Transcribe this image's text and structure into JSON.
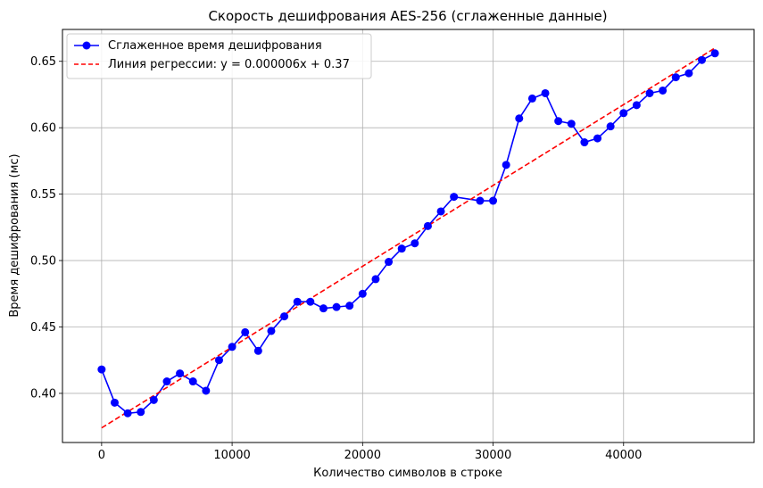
{
  "chart_data": {
    "type": "line",
    "title": "Скорость дешифрования AES-256 (сглаженные данные)",
    "xlabel": "Количество символов в строке",
    "ylabel": "Время дешифрования (мс)",
    "xlim": [
      -3000,
      50000
    ],
    "ylim": [
      0.363,
      0.674
    ],
    "xticks": [
      0,
      10000,
      20000,
      30000,
      40000
    ],
    "yticks": [
      0.4,
      0.45,
      0.5,
      0.55,
      0.6,
      0.65
    ],
    "xtick_labels": [
      "0",
      "10000",
      "20000",
      "30000",
      "40000"
    ],
    "ytick_labels": [
      "0.40",
      "0.45",
      "0.50",
      "0.55",
      "0.60",
      "0.65"
    ],
    "grid": true,
    "legend_position": "top-left",
    "series": [
      {
        "name": "Сглаженное время дешифрования",
        "style": "line-marker",
        "color": "#0000ff",
        "x": [
          0,
          1000,
          2000,
          3000,
          4000,
          5000,
          6000,
          7000,
          8000,
          9000,
          10000,
          11000,
          12000,
          13000,
          14000,
          15000,
          16000,
          17000,
          18000,
          19000,
          20000,
          21000,
          22000,
          23000,
          24000,
          25000,
          26000,
          27000,
          29000,
          30000,
          31000,
          32000,
          33000,
          34000,
          35000,
          36000,
          37000,
          38000,
          39000,
          40000,
          41000,
          42000,
          43000,
          44000,
          45000,
          46000,
          47000
        ],
        "values": [
          0.418,
          0.393,
          0.385,
          0.386,
          0.395,
          0.409,
          0.415,
          0.409,
          0.402,
          0.425,
          0.435,
          0.446,
          0.432,
          0.447,
          0.458,
          0.469,
          0.469,
          0.464,
          0.465,
          0.466,
          0.475,
          0.486,
          0.499,
          0.509,
          0.513,
          0.526,
          0.537,
          0.548,
          0.545,
          0.545,
          0.572,
          0.607,
          0.622,
          0.626,
          0.605,
          0.603,
          0.589,
          0.592,
          0.601,
          0.611,
          0.617,
          0.626,
          0.628,
          0.638,
          0.641,
          0.651,
          0.656
        ]
      },
      {
        "name": "Линия регрессии: y = 0.000006x + 0.37",
        "style": "dashed",
        "color": "#ff0000",
        "x": [
          0,
          47000
        ],
        "values": [
          0.374,
          0.66
        ]
      }
    ]
  }
}
